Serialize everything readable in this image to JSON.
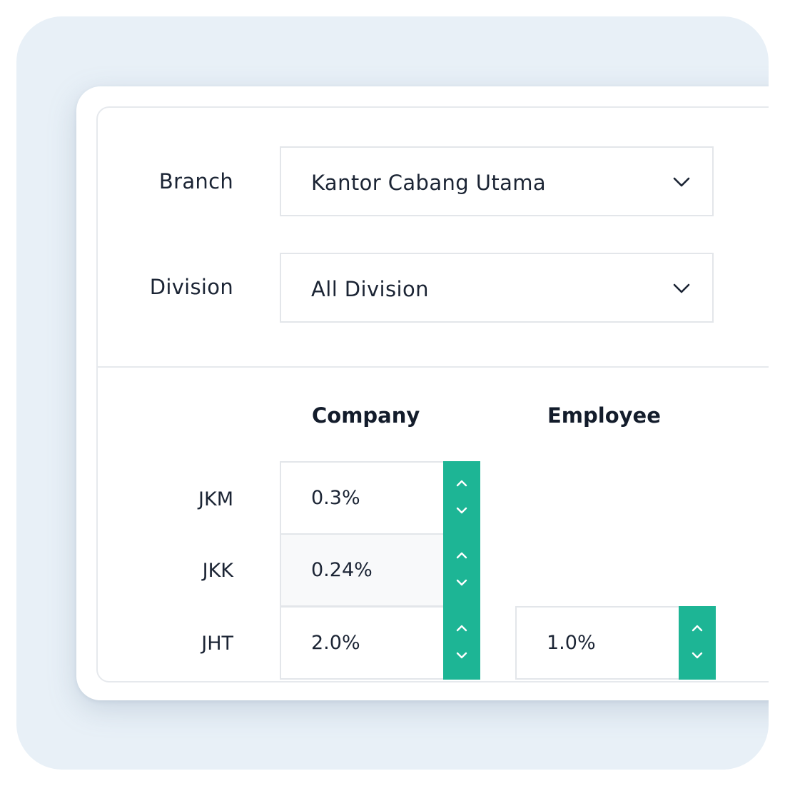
{
  "filters": {
    "branch": {
      "label": "Branch",
      "value": "Kantor Cabang Utama"
    },
    "division": {
      "label": "Division",
      "value": "All Division"
    }
  },
  "columns": {
    "company": "Company",
    "employee": "Employee"
  },
  "rows": [
    {
      "label": "JKM",
      "company": "0.3%"
    },
    {
      "label": "JKK",
      "company": "0.24%"
    },
    {
      "label": "JHT",
      "company": "2.0%",
      "employee": "1.0%"
    }
  ],
  "colors": {
    "accent": "#1db595",
    "text": "#1b2434",
    "backdrop": "#e8f0f7"
  },
  "icons": {
    "select": "chevron-down-icon",
    "step_up": "chevron-up-icon",
    "step_down": "chevron-down-icon"
  }
}
